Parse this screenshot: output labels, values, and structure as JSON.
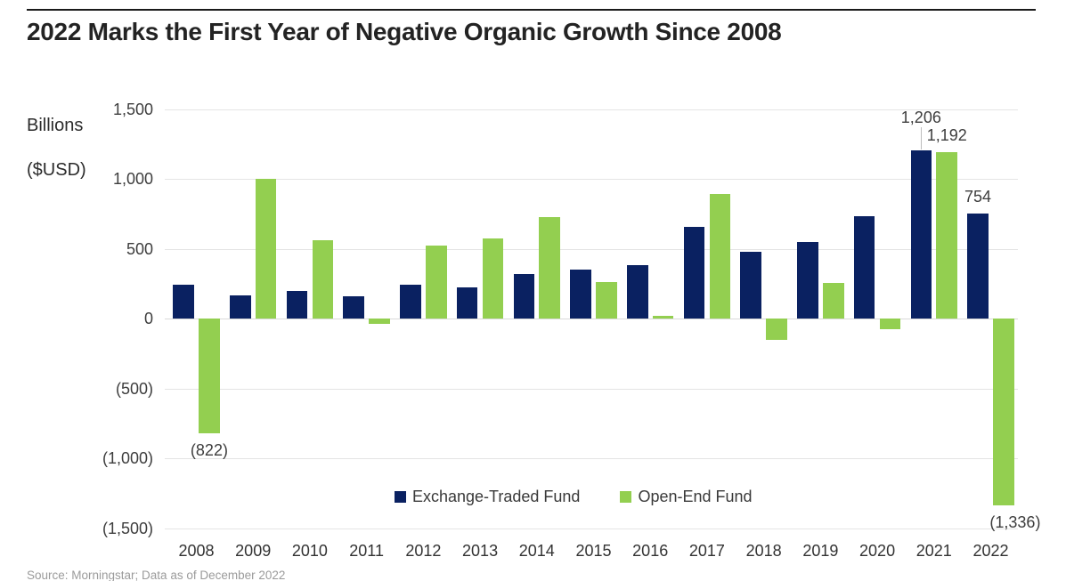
{
  "title": "2022 Marks the First Year of Negative Organic Growth Since 2008",
  "y_axis_unit": {
    "line1": "Billions",
    "line2": "($USD)"
  },
  "source": "Source: Morningstar; Data as of December 2022",
  "legend": {
    "items": [
      {
        "label": "Exchange-Traded Fund",
        "color": "#0a2161"
      },
      {
        "label": "Open-End Fund",
        "color": "#93cf50"
      }
    ]
  },
  "chart_data": {
    "type": "bar",
    "title": "2022 Marks the First Year of Negative Organic Growth Since 2008",
    "xlabel": "",
    "ylabel": "Billions ($USD)",
    "ylim": [
      -1500,
      1500
    ],
    "grid": true,
    "legend_position": "bottom-center-inside",
    "gridline_values": [
      1500,
      1000,
      500,
      0,
      -500,
      -1000,
      -1500
    ],
    "y_tick_labels": [
      "1,500",
      "1,000",
      "500",
      "0",
      "(500)",
      "(1,000)",
      "(1,500)"
    ],
    "categories": [
      "2008",
      "2009",
      "2010",
      "2011",
      "2012",
      "2013",
      "2014",
      "2015",
      "2016",
      "2017",
      "2018",
      "2019",
      "2020",
      "2021",
      "2022"
    ],
    "series": [
      {
        "name": "Exchange-Traded Fund",
        "key": "etf",
        "color": "#0a2161",
        "values": [
          240,
          165,
          195,
          160,
          245,
          225,
          320,
          350,
          380,
          655,
          480,
          550,
          730,
          1206,
          754
        ]
      },
      {
        "name": "Open-End Fund",
        "key": "oef",
        "color": "#93cf50",
        "values": [
          -822,
          1000,
          560,
          -40,
          525,
          575,
          725,
          260,
          22,
          890,
          -150,
          255,
          -75,
          1192,
          -1336
        ]
      }
    ],
    "annotations": [
      {
        "series": "etf",
        "category": "2021",
        "text": "1,206",
        "dy": -18,
        "leader": true
      },
      {
        "series": "oef",
        "category": "2021",
        "text": "1,192"
      },
      {
        "series": "etf",
        "category": "2022",
        "text": "754"
      },
      {
        "series": "oef",
        "category": "2008",
        "text": "(822)"
      },
      {
        "series": "oef",
        "category": "2022",
        "text": "(1,336)",
        "dx": 13
      }
    ]
  }
}
